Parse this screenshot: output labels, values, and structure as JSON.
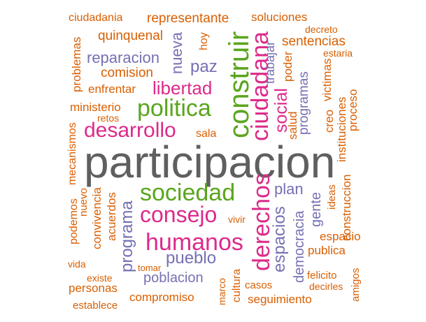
{
  "palette": {
    "gray": "#5f5f5f",
    "magenta": "#dd2a8a",
    "green": "#5aa51d",
    "purple": "#7570b3",
    "orange": "#d95f02"
  },
  "words": [
    {
      "text": "participacion",
      "color": "#5f5f5f"
    },
    {
      "text": "construir",
      "color": "#5aa51d"
    },
    {
      "text": "ciudadana",
      "color": "#dd2a8a"
    },
    {
      "text": "politica",
      "color": "#5aa51d"
    },
    {
      "text": "sociedad",
      "color": "#5aa51d"
    },
    {
      "text": "desarrollo",
      "color": "#dd2a8a"
    },
    {
      "text": "humanos",
      "color": "#dd2a8a"
    },
    {
      "text": "derechos",
      "color": "#dd2a8a"
    },
    {
      "text": "consejo",
      "color": "#dd2a8a"
    },
    {
      "text": "libertad",
      "color": "#dd2a8a"
    },
    {
      "text": "social",
      "color": "#dd2a8a"
    },
    {
      "text": "espacios",
      "color": "#7570b3"
    },
    {
      "text": "programa",
      "color": "#7570b3"
    },
    {
      "text": "pueblo",
      "color": "#7570b3"
    },
    {
      "text": "paz",
      "color": "#7570b3"
    },
    {
      "text": "nueva",
      "color": "#7570b3"
    },
    {
      "text": "plan",
      "color": "#7570b3"
    },
    {
      "text": "reparacion",
      "color": "#7570b3"
    },
    {
      "text": "poblacion",
      "color": "#7570b3"
    },
    {
      "text": "democracia",
      "color": "#7570b3"
    },
    {
      "text": "gente",
      "color": "#7570b3"
    },
    {
      "text": "programas",
      "color": "#7570b3"
    },
    {
      "text": "trabajar",
      "color": "#7570b3"
    },
    {
      "text": "representante",
      "color": "#d95f02"
    },
    {
      "text": "soluciones",
      "color": "#d95f02"
    },
    {
      "text": "ciudadania",
      "color": "#d95f02"
    },
    {
      "text": "decreto",
      "color": "#d95f02"
    },
    {
      "text": "quinquenal",
      "color": "#d95f02"
    },
    {
      "text": "hoy",
      "color": "#d95f02"
    },
    {
      "text": "sentencias",
      "color": "#d95f02"
    },
    {
      "text": "estaria",
      "color": "#d95f02"
    },
    {
      "text": "problemas",
      "color": "#d95f02"
    },
    {
      "text": "comision",
      "color": "#d95f02"
    },
    {
      "text": "poder",
      "color": "#d95f02"
    },
    {
      "text": "victimas",
      "color": "#d95f02"
    },
    {
      "text": "enfrentar",
      "color": "#d95f02"
    },
    {
      "text": "ministerio",
      "color": "#d95f02"
    },
    {
      "text": "retos",
      "color": "#d95f02"
    },
    {
      "text": "salud",
      "color": "#d95f02"
    },
    {
      "text": "creo",
      "color": "#d95f02"
    },
    {
      "text": "instituciones",
      "color": "#d95f02"
    },
    {
      "text": "proceso",
      "color": "#d95f02"
    },
    {
      "text": "sala",
      "color": "#d95f02"
    },
    {
      "text": "mecanismos",
      "color": "#d95f02"
    },
    {
      "text": "construccion",
      "color": "#d95f02"
    },
    {
      "text": "podemos",
      "color": "#d95f02"
    },
    {
      "text": "nuevo",
      "color": "#d95f02"
    },
    {
      "text": "convivencia",
      "color": "#d95f02"
    },
    {
      "text": "acuerdos",
      "color": "#d95f02"
    },
    {
      "text": "vivir",
      "color": "#d95f02"
    },
    {
      "text": "ideas",
      "color": "#d95f02"
    },
    {
      "text": "espacio",
      "color": "#d95f02"
    },
    {
      "text": "publica",
      "color": "#d95f02"
    },
    {
      "text": "vida",
      "color": "#d95f02"
    },
    {
      "text": "tomar",
      "color": "#d95f02"
    },
    {
      "text": "existe",
      "color": "#d95f02"
    },
    {
      "text": "cultura",
      "color": "#d95f02"
    },
    {
      "text": "felicito",
      "color": "#d95f02"
    },
    {
      "text": "amigos",
      "color": "#d95f02"
    },
    {
      "text": "personas",
      "color": "#d95f02"
    },
    {
      "text": "marco",
      "color": "#d95f02"
    },
    {
      "text": "casos",
      "color": "#d95f02"
    },
    {
      "text": "decirles",
      "color": "#d95f02"
    },
    {
      "text": "compromiso",
      "color": "#d95f02"
    },
    {
      "text": "seguimiento",
      "color": "#d95f02"
    },
    {
      "text": "establece",
      "color": "#d95f02"
    }
  ]
}
